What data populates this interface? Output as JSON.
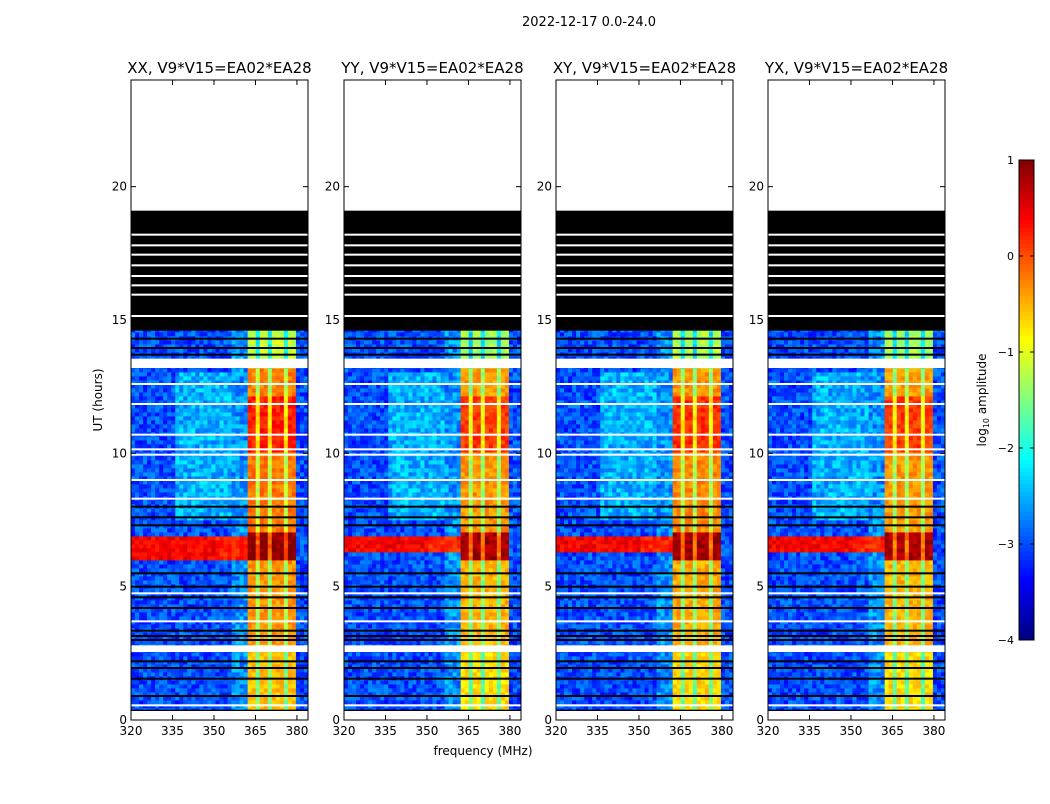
{
  "chart_data": {
    "type": "heatmap",
    "suptitle": "2022-12-17 0.0-24.0",
    "xlabel": "frequency (MHz)",
    "ylabel": "UT (hours)",
    "xlim": [
      320,
      384
    ],
    "ylim": [
      0,
      24
    ],
    "xticks": [
      "320",
      "335",
      "350",
      "365",
      "380"
    ],
    "xtick_values": [
      320,
      335,
      350,
      365,
      380
    ],
    "yticks": [
      "0",
      "5",
      "10",
      "15",
      "20"
    ],
    "ytick_values": [
      0,
      5,
      10,
      15,
      20
    ],
    "panels": [
      {
        "title": "XX, V9*V15=EA02*EA28",
        "strong_band": [
          6.0,
          6.9
        ],
        "rfi_gain": 0.15
      },
      {
        "title": "YY, V9*V15=EA02*EA28",
        "strong_band": [
          6.3,
          6.9
        ],
        "rfi_gain": 0.0
      },
      {
        "title": "XY, V9*V15=EA02*EA28",
        "strong_band": [
          6.3,
          6.9
        ],
        "rfi_gain": 0.05
      },
      {
        "title": "YX, V9*V15=EA02*EA28",
        "strong_band": [
          6.3,
          6.9
        ],
        "rfi_gain": 0.0
      }
    ],
    "data_range_hours": [
      0.3,
      19.1
    ],
    "flagged_block_hours": [
      14.6,
      19.1
    ],
    "flagged_block_gaps": [
      15.15,
      15.95,
      16.3,
      16.65,
      17.05,
      17.45,
      17.8,
      18.2
    ],
    "flagged_row_hours": [
      0.35,
      0.9,
      1.55,
      1.95,
      2.2,
      3.0,
      3.15,
      3.35,
      4.2,
      4.6,
      5.0,
      5.5,
      7.3,
      7.6,
      8.0,
      13.7,
      13.95,
      14.3
    ],
    "blank_row_hours": [
      0.55,
      3.7,
      4.75,
      8.3,
      9.0,
      9.95,
      10.15,
      10.7,
      11.85,
      12.6
    ],
    "blank_band_hours": [
      [
        2.55,
        2.8
      ],
      [
        13.2,
        13.55
      ]
    ],
    "rfi_band_mhz": [
      362,
      380
    ],
    "rfi_gaps_mhz": [
      365.5,
      370.5,
      375.5
    ],
    "colorbar": {
      "label": "log10 amplitude",
      "label_main": "log",
      "label_sub": "10",
      "label_rest": " amplitude",
      "range": [
        -4,
        1
      ],
      "ticks": [
        "1",
        "0",
        "−1",
        "−2",
        "−3",
        "−4"
      ],
      "tick_values": [
        1,
        0,
        -1,
        -2,
        -3,
        -4
      ],
      "colormap": "jet"
    }
  }
}
